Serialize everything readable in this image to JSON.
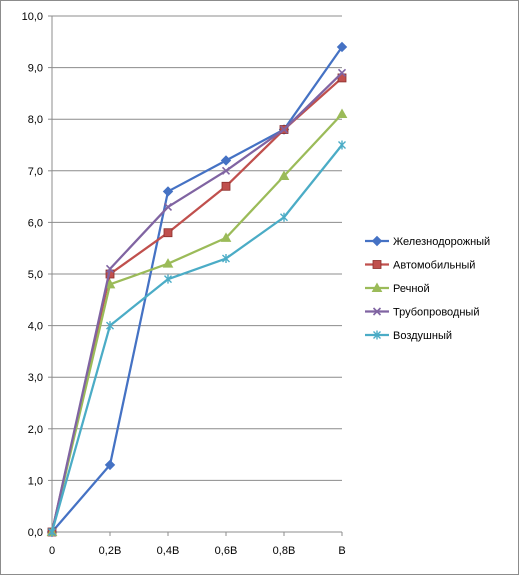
{
  "chart_data": {
    "type": "line",
    "title": "",
    "xlabel": "",
    "ylabel": "",
    "categories": [
      "0",
      "0,2B",
      "0,4B",
      "0,6B",
      "0,8B",
      "B"
    ],
    "y_ticks": [
      "0,0",
      "1,0",
      "2,0",
      "3,0",
      "4,0",
      "5,0",
      "6,0",
      "7,0",
      "8,0",
      "9,0",
      "10,0"
    ],
    "ylim": [
      0,
      10
    ],
    "grid": "horizontal",
    "legend_position": "right",
    "series": [
      {
        "name": "Железнодорожный",
        "color": "#4572c4",
        "marker": "diamond",
        "values": [
          0,
          1.3,
          6.6,
          7.2,
          7.8,
          9.4
        ]
      },
      {
        "name": "Автомобильный",
        "color": "#c0504d",
        "marker": "square",
        "values": [
          0,
          5.0,
          5.8,
          6.7,
          7.8,
          8.8
        ]
      },
      {
        "name": "Речной",
        "color": "#9bbb59",
        "marker": "triangle",
        "values": [
          0,
          4.8,
          5.2,
          5.7,
          6.9,
          8.1
        ]
      },
      {
        "name": "Трубопроводный",
        "color": "#8064a2",
        "marker": "x",
        "values": [
          0,
          5.1,
          6.3,
          7.0,
          7.8,
          8.9
        ]
      },
      {
        "name": "Воздушный",
        "color": "#4bacc6",
        "marker": "star",
        "values": [
          0,
          4.0,
          4.9,
          5.3,
          6.1,
          7.5
        ]
      }
    ]
  }
}
